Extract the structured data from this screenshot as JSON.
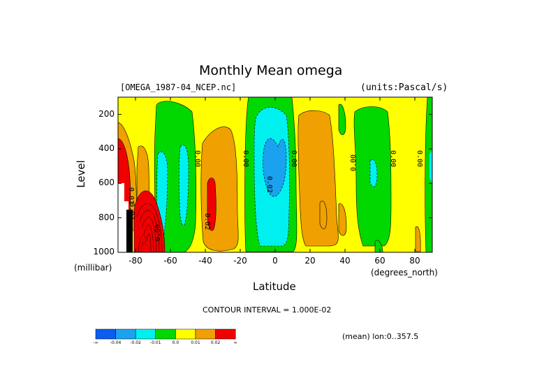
{
  "chart_data": {
    "type": "heatmap",
    "title": "Monthly Mean omega",
    "file_label": "[OMEGA_1987-04_NCEP.nc]",
    "units_label": "(units:Pascal/s)",
    "xlabel": "Latitude",
    "ylabel": "Level",
    "x_unit": "(degrees_north)",
    "y_unit": "(millibar)",
    "xlim": [
      -90,
      90
    ],
    "ylim": [
      1000,
      100
    ],
    "x_ticks": [
      "-80",
      "-60",
      "-40",
      "-20",
      "0",
      "20",
      "40",
      "60",
      "80"
    ],
    "x_tick_values": [
      -80,
      -60,
      -40,
      -20,
      0,
      20,
      40,
      60,
      80
    ],
    "y_ticks": [
      "200",
      "400",
      "600",
      "800",
      "1000"
    ],
    "y_tick_values": [
      200,
      400,
      600,
      800,
      1000
    ],
    "contour_interval": "CONTOUR INTERVAL = 1.000E-02",
    "mean_label": "(mean) lon:0..357.5",
    "colorbar": {
      "colors": [
        "#0b5cf0",
        "#1aa2f0",
        "#00f0f0",
        "#00d800",
        "#ffff00",
        "#f0a000",
        "#f00000"
      ],
      "labels": [
        "-∞",
        "-0.04",
        "-0.02",
        "-0.01",
        "0.0",
        "0.01",
        "0.02",
        "∞"
      ]
    },
    "contour_labels": [
      "0.00",
      "0.00",
      "0.00",
      "0.00",
      "0.00",
      "0.00",
      "0.00",
      "0.01",
      "0.02",
      "0.02",
      "0.02"
    ],
    "regions": [
      {
        "level": "positive",
        "color": "#f0a000",
        "x": [
          -47,
          -33
        ],
        "y": [
          250,
          960
        ]
      },
      {
        "level": "positive",
        "color": "#f0a000",
        "x": [
          20,
          32
        ],
        "y": [
          120,
          960
        ]
      },
      {
        "level": "negative",
        "color": "#00d800",
        "x": [
          -10,
          12
        ],
        "y": [
          100,
          1000
        ]
      },
      {
        "level": "negative",
        "color": "#00d800",
        "x": [
          -77,
          -57
        ],
        "y": [
          110,
          1000
        ]
      },
      {
        "level": "negative",
        "color": "#00d800",
        "x": [
          47,
          62
        ],
        "y": [
          130,
          950
        ]
      },
      {
        "level": "negative",
        "color": "#00f0f0",
        "x": [
          -5,
          7
        ],
        "y": [
          180,
          960
        ]
      },
      {
        "level": "negative",
        "color": "#1aa2f0",
        "x": [
          -2,
          5
        ],
        "y": [
          290,
          680
        ]
      },
      {
        "level": "positive",
        "color": "#f00000",
        "x": [
          -90,
          -82
        ],
        "y": [
          330,
          1000
        ]
      },
      {
        "level": "positive",
        "color": "#f00000",
        "x": [
          -80,
          -71
        ],
        "y": [
          640,
          1000
        ]
      }
    ]
  }
}
